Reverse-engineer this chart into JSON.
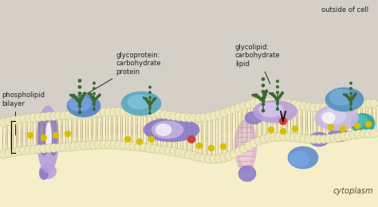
{
  "bg_top_color": "#d4d0c8",
  "bg_bottom_color": "#f5eec8",
  "labels": {
    "phospholipid_bilayer": "phospholipid\nbilayer",
    "glycoprotein": "glycoprotein:\ncarbohydrate\nprotein",
    "glycolipid": "glycolipid:\ncarbohydrate\nlipid",
    "outside_of_cell": "outside of cell",
    "cytoplasm": "cytoplasm"
  },
  "head_color": "#ece8c0",
  "head_ec": "#c8b870",
  "tail_color": "#b8aa80",
  "yellow_dot": "#d8c000",
  "carb_color": "#3a6830",
  "blue_protein": "#5888c8",
  "teal_protein": "#3898a0",
  "purple_protein": "#8878c8",
  "lavender_protein": "#b8a0d8",
  "pink_protein": "#d8a8c8",
  "light_purple": "#c8b8e0",
  "red_dot": "#cc4040",
  "black": "#222222"
}
